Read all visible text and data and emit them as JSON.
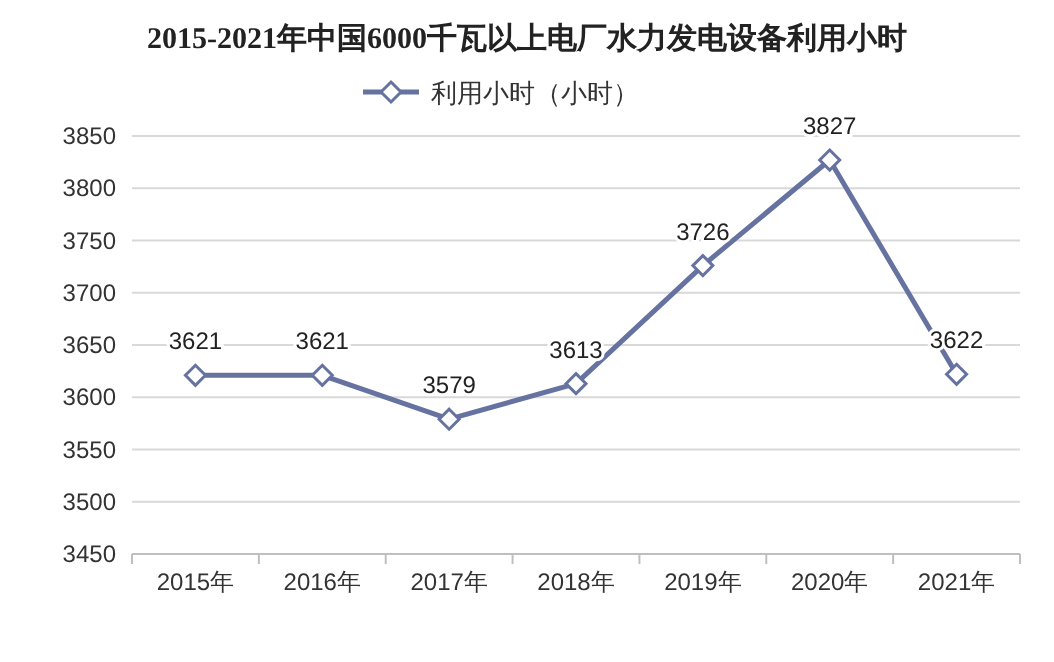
{
  "chart_data": {
    "type": "line",
    "title": "2015-2021年中国6000千瓦以上电厂水力发电设备利用小时",
    "categories": [
      "2015年",
      "2016年",
      "2017年",
      "2018年",
      "2019年",
      "2020年",
      "2021年"
    ],
    "series": [
      {
        "name": "利用小时（小时）",
        "color": "#6673a0",
        "values": [
          3621,
          3621,
          3579,
          3613,
          3726,
          3827,
          3622
        ]
      }
    ],
    "ylim": [
      3450,
      3850
    ],
    "yticks": [
      3450,
      3500,
      3550,
      3600,
      3650,
      3700,
      3750,
      3800,
      3850
    ],
    "grid": "y",
    "legend": "top",
    "marker": "diamond",
    "line_style": "solid",
    "data_labels": true
  }
}
